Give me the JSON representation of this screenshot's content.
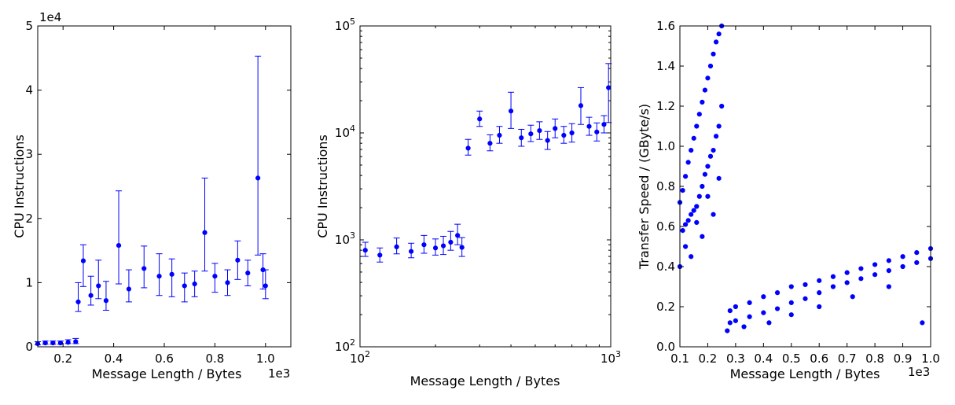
{
  "chart_data": [
    {
      "type": "scatter",
      "xlabel": "Message Length / Bytes",
      "ylabel": "CPU Instructions",
      "x_offset_label": "1e3",
      "y_offset_label": "1e4",
      "xlim": [
        0.1,
        1.1
      ],
      "ylim": [
        0,
        5
      ],
      "x_tick_values": [
        0.2,
        0.4,
        0.6,
        0.8,
        1.0
      ],
      "x_tick_labels": [
        "0.2",
        "0.4",
        "0.6",
        "0.8",
        "1.0"
      ],
      "y_tick_values": [
        0,
        1,
        2,
        3,
        4,
        5
      ],
      "y_tick_labels": [
        "0",
        "1",
        "2",
        "3",
        "4",
        "5"
      ],
      "error_bars": true,
      "color": "#0000ff",
      "series": [
        {
          "x": [
            0.1,
            0.13,
            0.16,
            0.19,
            0.22,
            0.25,
            0.26,
            0.28,
            0.31,
            0.34,
            0.37,
            0.42,
            0.46,
            0.52,
            0.58,
            0.63,
            0.68,
            0.72,
            0.76,
            0.8,
            0.85,
            0.89,
            0.93,
            0.97,
            0.99,
            1.0
          ],
          "y": [
            0.05,
            0.06,
            0.06,
            0.06,
            0.07,
            0.08,
            0.7,
            1.34,
            0.8,
            0.95,
            0.72,
            1.58,
            0.9,
            1.22,
            1.1,
            1.13,
            0.95,
            0.98,
            1.78,
            1.1,
            1.0,
            1.35,
            1.15,
            2.63,
            1.2,
            0.95
          ],
          "yerr_hi": [
            0.03,
            0.03,
            0.03,
            0.03,
            0.04,
            0.05,
            0.3,
            0.25,
            0.3,
            0.4,
            0.3,
            0.85,
            0.3,
            0.35,
            0.35,
            0.24,
            0.2,
            0.2,
            0.85,
            0.2,
            0.2,
            0.3,
            0.2,
            1.9,
            0.25,
            0.25
          ],
          "yerr_lo": [
            0.02,
            0.02,
            0.02,
            0.02,
            0.02,
            0.03,
            0.15,
            0.4,
            0.15,
            0.2,
            0.15,
            0.6,
            0.2,
            0.3,
            0.3,
            0.35,
            0.25,
            0.2,
            0.6,
            0.25,
            0.2,
            0.3,
            0.2,
            1.2,
            0.3,
            0.2
          ]
        }
      ]
    },
    {
      "type": "scatter",
      "xscale": "log",
      "yscale": "log",
      "xlabel": "Message Length / Bytes",
      "ylabel": "CPU Instructions",
      "xlim": [
        100,
        1000
      ],
      "ylim": [
        100,
        100000
      ],
      "x_tick_values": [
        100,
        1000
      ],
      "y_tick_values": [
        100,
        1000,
        10000,
        100000
      ],
      "tick_base": "10",
      "x_tick_exponents": [
        "2",
        "3"
      ],
      "y_tick_exponents": [
        "2",
        "3",
        "4",
        "5"
      ],
      "error_bars": true,
      "color": "#0000ff",
      "series": [
        {
          "x": [
            105,
            120,
            140,
            160,
            180,
            200,
            215,
            230,
            245,
            255,
            270,
            300,
            330,
            360,
            400,
            440,
            480,
            520,
            560,
            600,
            650,
            700,
            760,
            820,
            880,
            940,
            980
          ],
          "y": [
            800,
            720,
            860,
            780,
            900,
            840,
            880,
            950,
            1100,
            850,
            7200,
            13500,
            8000,
            9500,
            16000,
            9000,
            9800,
            10500,
            8500,
            11000,
            9500,
            10000,
            18000,
            11500,
            10200,
            12000,
            26500
          ],
          "yerr_hi": [
            150,
            120,
            180,
            150,
            200,
            180,
            200,
            250,
            300,
            200,
            1500,
            2500,
            1600,
            2000,
            8000,
            1800,
            2000,
            2200,
            1800,
            2500,
            2000,
            2200,
            8500,
            2500,
            2200,
            2500,
            18000
          ],
          "yerr_lo": [
            100,
            100,
            120,
            100,
            150,
            120,
            150,
            150,
            200,
            150,
            1000,
            2000,
            1200,
            1500,
            5000,
            1500,
            1500,
            1800,
            1500,
            2000,
            1500,
            1800,
            6000,
            2000,
            1800,
            2000,
            14000
          ]
        }
      ]
    },
    {
      "type": "scatter",
      "xlabel": "Message Length / Bytes",
      "ylabel": "Transfer Speed / (GByte/s)",
      "x_offset_label": "1e3",
      "xlim": [
        0.1,
        1.0
      ],
      "ylim": [
        0.0,
        1.6
      ],
      "x_tick_values": [
        0.1,
        0.2,
        0.3,
        0.4,
        0.5,
        0.6,
        0.7,
        0.8,
        0.9,
        1.0
      ],
      "x_tick_labels": [
        "0.1",
        "0.2",
        "0.3",
        "0.4",
        "0.5",
        "0.6",
        "0.7",
        "0.8",
        "0.9",
        "1.0"
      ],
      "y_tick_values": [
        0.0,
        0.2,
        0.4,
        0.6,
        0.8,
        1.0,
        1.2,
        1.4,
        1.6
      ],
      "y_tick_labels": [
        "0.0",
        "0.2",
        "0.4",
        "0.6",
        "0.8",
        "1.0",
        "1.2",
        "1.4",
        "1.6"
      ],
      "color": "#0000ff",
      "series": [
        {
          "x": [
            0.1,
            0.11,
            0.12,
            0.13,
            0.14,
            0.15,
            0.16,
            0.17,
            0.18,
            0.19,
            0.2,
            0.21,
            0.22,
            0.23,
            0.24,
            0.25,
            0.11,
            0.12,
            0.13,
            0.14,
            0.15,
            0.16,
            0.17,
            0.18,
            0.19,
            0.2,
            0.21,
            0.22,
            0.23,
            0.24,
            0.25,
            0.1,
            0.12,
            0.14,
            0.16,
            0.18,
            0.2,
            0.22,
            0.24,
            0.28,
            0.3,
            0.35,
            0.4,
            0.45,
            0.5,
            0.55,
            0.6,
            0.65,
            0.7,
            0.75,
            0.8,
            0.85,
            0.9,
            0.95,
            1.0,
            0.28,
            0.3,
            0.35,
            0.4,
            0.45,
            0.5,
            0.55,
            0.6,
            0.65,
            0.7,
            0.75,
            0.8,
            0.85,
            0.9,
            0.95,
            1.0,
            0.27,
            0.33,
            0.42,
            0.5,
            0.6,
            0.72,
            0.85,
            0.97
          ],
          "y": [
            0.72,
            0.78,
            0.85,
            0.92,
            0.98,
            1.04,
            1.1,
            1.16,
            1.22,
            1.28,
            1.34,
            1.4,
            1.46,
            1.52,
            1.56,
            1.6,
            0.58,
            0.61,
            0.63,
            0.66,
            0.68,
            0.7,
            0.75,
            0.8,
            0.86,
            0.9,
            0.95,
            0.98,
            1.05,
            1.1,
            1.2,
            0.4,
            0.5,
            0.45,
            0.62,
            0.55,
            0.75,
            0.66,
            0.84,
            0.18,
            0.2,
            0.22,
            0.25,
            0.27,
            0.3,
            0.31,
            0.33,
            0.35,
            0.37,
            0.39,
            0.41,
            0.43,
            0.45,
            0.47,
            0.49,
            0.12,
            0.13,
            0.15,
            0.17,
            0.19,
            0.22,
            0.24,
            0.27,
            0.3,
            0.32,
            0.34,
            0.36,
            0.38,
            0.4,
            0.42,
            0.44,
            0.08,
            0.1,
            0.12,
            0.16,
            0.2,
            0.25,
            0.3,
            0.12
          ]
        }
      ]
    }
  ]
}
